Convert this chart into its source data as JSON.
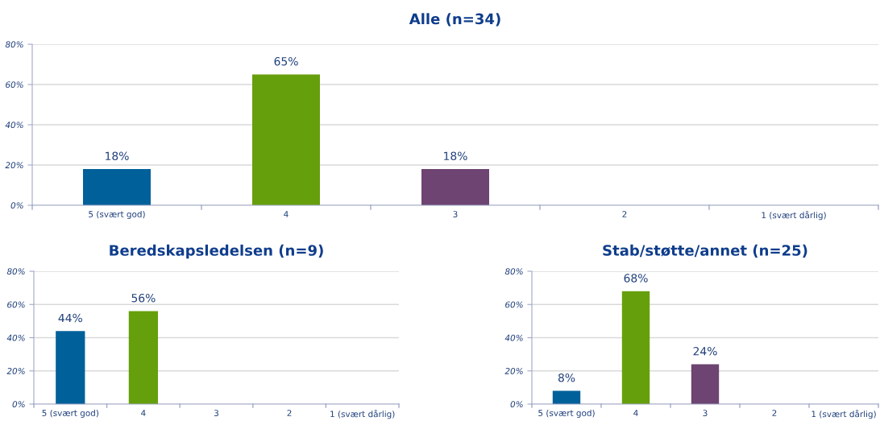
{
  "chart_data": [
    {
      "type": "bar",
      "title": "Alle (n=34)",
      "categories": [
        "5 (svært god)",
        "4",
        "3",
        "2",
        "1 (svært dårlig)"
      ],
      "values": [
        18,
        65,
        18,
        null,
        null
      ],
      "value_labels": [
        "18%",
        "65%",
        "18%",
        null,
        null
      ],
      "colors": [
        "#00609a",
        "#669f0c",
        "#6d4472",
        "#00609a",
        "#669f0c"
      ],
      "ylim": [
        0,
        80
      ],
      "yticks": [
        {
          "value": 0,
          "label": "0%"
        },
        {
          "value": 20,
          "label": "20%"
        },
        {
          "value": 40,
          "label": "40%"
        },
        {
          "value": 60,
          "label": "60%"
        },
        {
          "value": 80,
          "label": "80%"
        }
      ],
      "grid": "y"
    },
    {
      "type": "bar",
      "title": "Beredskapsledelsen (n=9)",
      "categories": [
        "5 (svært god)",
        "4",
        "3",
        "2",
        "1 (svært dårlig)"
      ],
      "values": [
        44,
        56,
        null,
        null,
        null
      ],
      "value_labels": [
        "44%",
        "56%",
        null,
        null,
        null
      ],
      "colors": [
        "#00609a",
        "#669f0c",
        "#6d4472",
        "#00609a",
        "#669f0c"
      ],
      "ylim": [
        0,
        80
      ],
      "yticks": [
        {
          "value": 0,
          "label": "0%"
        },
        {
          "value": 20,
          "label": "20%"
        },
        {
          "value": 40,
          "label": "40%"
        },
        {
          "value": 60,
          "label": "60%"
        },
        {
          "value": 80,
          "label": "80%"
        }
      ],
      "grid": "y"
    },
    {
      "type": "bar",
      "title": "Stab/støtte/annet (n=25)",
      "categories": [
        "5 (svært god)",
        "4",
        "3",
        "2",
        "1 (svært dårlig)"
      ],
      "values": [
        8,
        68,
        24,
        null,
        null
      ],
      "value_labels": [
        "8%",
        "68%",
        "24%",
        null,
        null
      ],
      "colors": [
        "#00609a",
        "#669f0c",
        "#6d4472",
        "#00609a",
        "#669f0c"
      ],
      "ylim": [
        0,
        80
      ],
      "yticks": [
        {
          "value": 0,
          "label": "0%"
        },
        {
          "value": 20,
          "label": "20%"
        },
        {
          "value": 40,
          "label": "40%"
        },
        {
          "value": 60,
          "label": "60%"
        },
        {
          "value": 80,
          "label": "80%"
        }
      ],
      "grid": "y"
    }
  ]
}
